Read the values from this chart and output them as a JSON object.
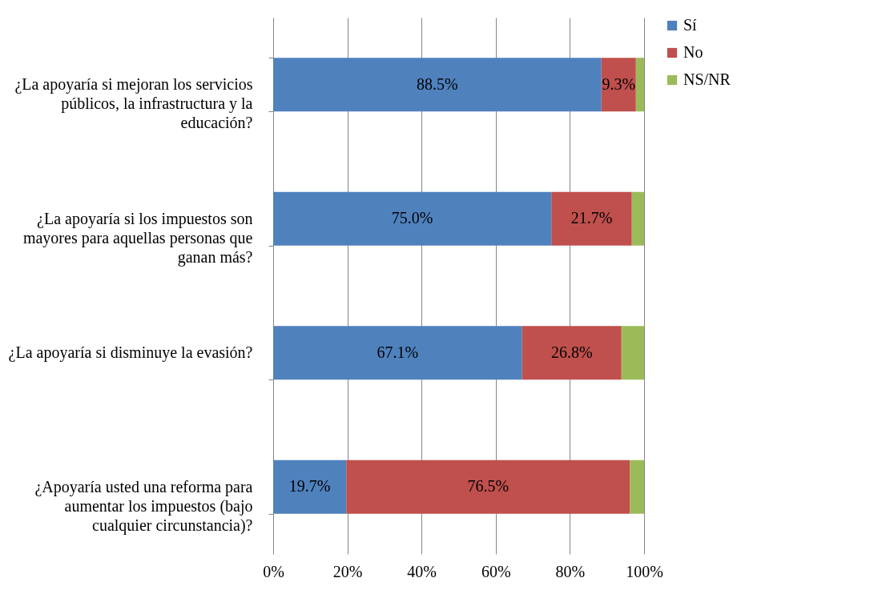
{
  "chart_data": {
    "type": "bar",
    "orientation": "horizontal",
    "stacked": true,
    "categories": [
      "¿La apoyaría si mejoran los servicios públicos, la infrastructura y la educación?",
      "¿La apoyaría si los impuestos son mayores para aquellas personas que ganan más?",
      "¿La apoyaría si disminuye la evasión?",
      "¿Apoyaría usted una reforma para aumentar los impuestos (bajo cualquier circunstancia)?"
    ],
    "series": [
      {
        "name": "Sí",
        "color": "#4f81bd",
        "values": [
          88.5,
          75.0,
          67.1,
          19.7
        ],
        "value_labels": [
          "88.5%",
          "75.0%",
          "67.1%",
          "19.7%"
        ]
      },
      {
        "name": "No",
        "color": "#c0504d",
        "values": [
          9.3,
          21.7,
          26.8,
          76.5
        ],
        "value_labels": [
          "9.3%",
          "21.7%",
          "26.8%",
          "76.5%"
        ]
      },
      {
        "name": "NS/NR",
        "color": "#9bbb59",
        "values": [
          2.2,
          3.3,
          6.1,
          3.8
        ],
        "value_labels": [
          null,
          null,
          null,
          null
        ]
      }
    ],
    "xlim": [
      0,
      100
    ],
    "xticks": [
      {
        "value": 0,
        "label": "0%"
      },
      {
        "value": 20,
        "label": "20%"
      },
      {
        "value": 40,
        "label": "40%"
      },
      {
        "value": 60,
        "label": "60%"
      },
      {
        "value": 80,
        "label": "80%"
      },
      {
        "value": 100,
        "label": "100%"
      }
    ],
    "grid": "x",
    "legend": "right"
  }
}
